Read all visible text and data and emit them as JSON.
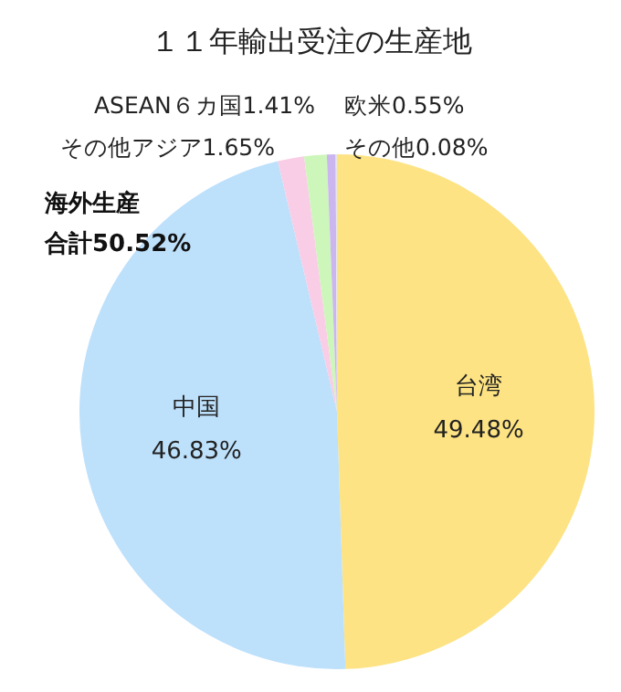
{
  "chart_data": {
    "type": "pie",
    "title": "１１年輸出受注の生産地",
    "categories": [
      "台湾",
      "中国",
      "その他アジア",
      "ASEAN６カ国",
      "欧米",
      "その他"
    ],
    "values": [
      49.48,
      46.83,
      1.65,
      1.41,
      0.55,
      0.08
    ],
    "colors": [
      "#fde383",
      "#bde0fb",
      "#f9cde6",
      "#cdf6bb",
      "#cbb6ef",
      "#e6e6e6"
    ],
    "value_labels": [
      "49.48%",
      "46.83%",
      "1.65%",
      "1.41%",
      "0.55%",
      "0.08%"
    ],
    "annotations": [
      "海外生産",
      "合計50.52%"
    ]
  }
}
